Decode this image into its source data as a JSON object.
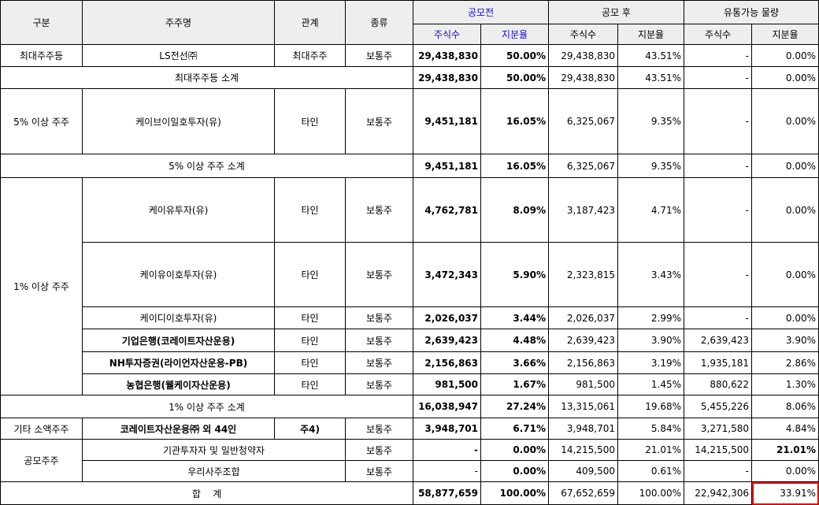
{
  "header": {
    "category": "구분",
    "holder_name": "주주명",
    "relation": "관계",
    "share_type": "종류",
    "before_ipo": "공모전",
    "after_ipo": "공모 후",
    "tradable": "유통가능 물량",
    "shares": "주식수",
    "ratio": "지분율"
  },
  "rows": {
    "ls": {
      "category": "최대주주등",
      "name": "LS전선㈜",
      "relation": "최대주주",
      "type": "보통주",
      "pre_shares": "29,438,830",
      "pre_ratio": "50.00%",
      "post_shares": "29,438,830",
      "post_ratio": "43.51%",
      "trade_shares": "-",
      "trade_ratio": "0.00%"
    },
    "ls_subtotal": {
      "label": "최대주주등 소계",
      "pre_shares": "29,438,830",
      "pre_ratio": "50.00%",
      "post_shares": "29,438,830",
      "post_ratio": "43.51%",
      "trade_shares": "-",
      "trade_ratio": "0.00%"
    },
    "kb1": {
      "category": "5% 이상 주주",
      "name": "케이브이일호투자(유)",
      "relation": "타인",
      "type": "보통주",
      "pre_shares": "9,451,181",
      "pre_ratio": "16.05%",
      "post_shares": "6,325,067",
      "post_ratio": "9.35%",
      "trade_shares": "-",
      "trade_ratio": "0.00%"
    },
    "five_subtotal": {
      "label": "5% 이상 주주 소계",
      "pre_shares": "9,451,181",
      "pre_ratio": "16.05%",
      "post_shares": "6,325,067",
      "post_ratio": "9.35%",
      "trade_shares": "-",
      "trade_ratio": "0.00%"
    },
    "ku": {
      "category": "1% 이상 주주",
      "name": "케이유투자(유)",
      "relation": "타인",
      "type": "보통주",
      "pre_shares": "4,762,781",
      "pre_ratio": "8.09%",
      "post_shares": "3,187,423",
      "post_ratio": "4.71%",
      "trade_shares": "-",
      "trade_ratio": "0.00%"
    },
    "ku2": {
      "name": "케이유이호투자(유)",
      "relation": "타인",
      "type": "보통주",
      "pre_shares": "3,472,343",
      "pre_ratio": "5.90%",
      "post_shares": "2,323,815",
      "post_ratio": "3.43%",
      "trade_shares": "-",
      "trade_ratio": "0.00%"
    },
    "kd2": {
      "name": "케이디이호투자(유)",
      "relation": "타인",
      "type": "보통주",
      "pre_shares": "2,026,037",
      "pre_ratio": "3.44%",
      "post_shares": "2,026,037",
      "post_ratio": "2.99%",
      "trade_shares": "-",
      "trade_ratio": "0.00%"
    },
    "ibk": {
      "name": "기업은행(코레이트자산운용)",
      "relation": "타인",
      "type": "보통주",
      "pre_shares": "2,639,423",
      "pre_ratio": "4.48%",
      "post_shares": "2,639,423",
      "post_ratio": "3.90%",
      "trade_shares": "2,639,423",
      "trade_ratio": "3.90%"
    },
    "nh": {
      "name": "NH투자증권(라이언자산운용-PB)",
      "relation": "타인",
      "type": "보통주",
      "pre_shares": "2,156,863",
      "pre_ratio": "3.66%",
      "post_shares": "2,156,863",
      "post_ratio": "3.19%",
      "trade_shares": "1,935,181",
      "trade_ratio": "2.86%"
    },
    "nonghyup": {
      "name": "농협은행(웰케이자산운용)",
      "relation": "타인",
      "type": "보통주",
      "pre_shares": "981,500",
      "pre_ratio": "1.67%",
      "post_shares": "981,500",
      "post_ratio": "1.45%",
      "trade_shares": "880,622",
      "trade_ratio": "1.30%"
    },
    "one_subtotal": {
      "label": "1% 이상 주주 소계",
      "pre_shares": "16,038,947",
      "pre_ratio": "27.24%",
      "post_shares": "13,315,061",
      "post_ratio": "19.68%",
      "trade_shares": "5,455,226",
      "trade_ratio": "8.06%"
    },
    "minor": {
      "category": "기타 소액주주",
      "name": "코레이트자산운용㈜ 외 44인",
      "note": "주4)",
      "type": "보통주",
      "pre_shares": "3,948,701",
      "pre_ratio": "6.71%",
      "post_shares": "3,948,701",
      "post_ratio": "5.84%",
      "trade_shares": "3,271,580",
      "trade_ratio": "4.84%"
    },
    "ipo_inst": {
      "category": "공모주주",
      "name": "기관투자자 및 일반청약자",
      "type": "보통주",
      "pre_shares": "-",
      "pre_ratio": "0.00%",
      "post_shares": "14,215,500",
      "post_ratio": "21.01%",
      "trade_shares": "14,215,500",
      "trade_ratio": "21.01%"
    },
    "esop": {
      "name": "우리사주조합",
      "type": "보통주",
      "pre_shares": "-",
      "pre_ratio": "0.00%",
      "post_shares": "409,500",
      "post_ratio": "0.61%",
      "trade_shares": "-",
      "trade_ratio": "0.00%"
    },
    "total": {
      "label": "합    계",
      "pre_shares": "58,877,659",
      "pre_ratio": "100.00%",
      "post_shares": "67,652,659",
      "post_ratio": "100.00%",
      "trade_shares": "22,942,306",
      "trade_ratio": "33.91%"
    }
  },
  "colors": {
    "header_bg": "#eeeeee",
    "highlight_blue": "#1a1acc",
    "highlight_box": "#e60000"
  }
}
